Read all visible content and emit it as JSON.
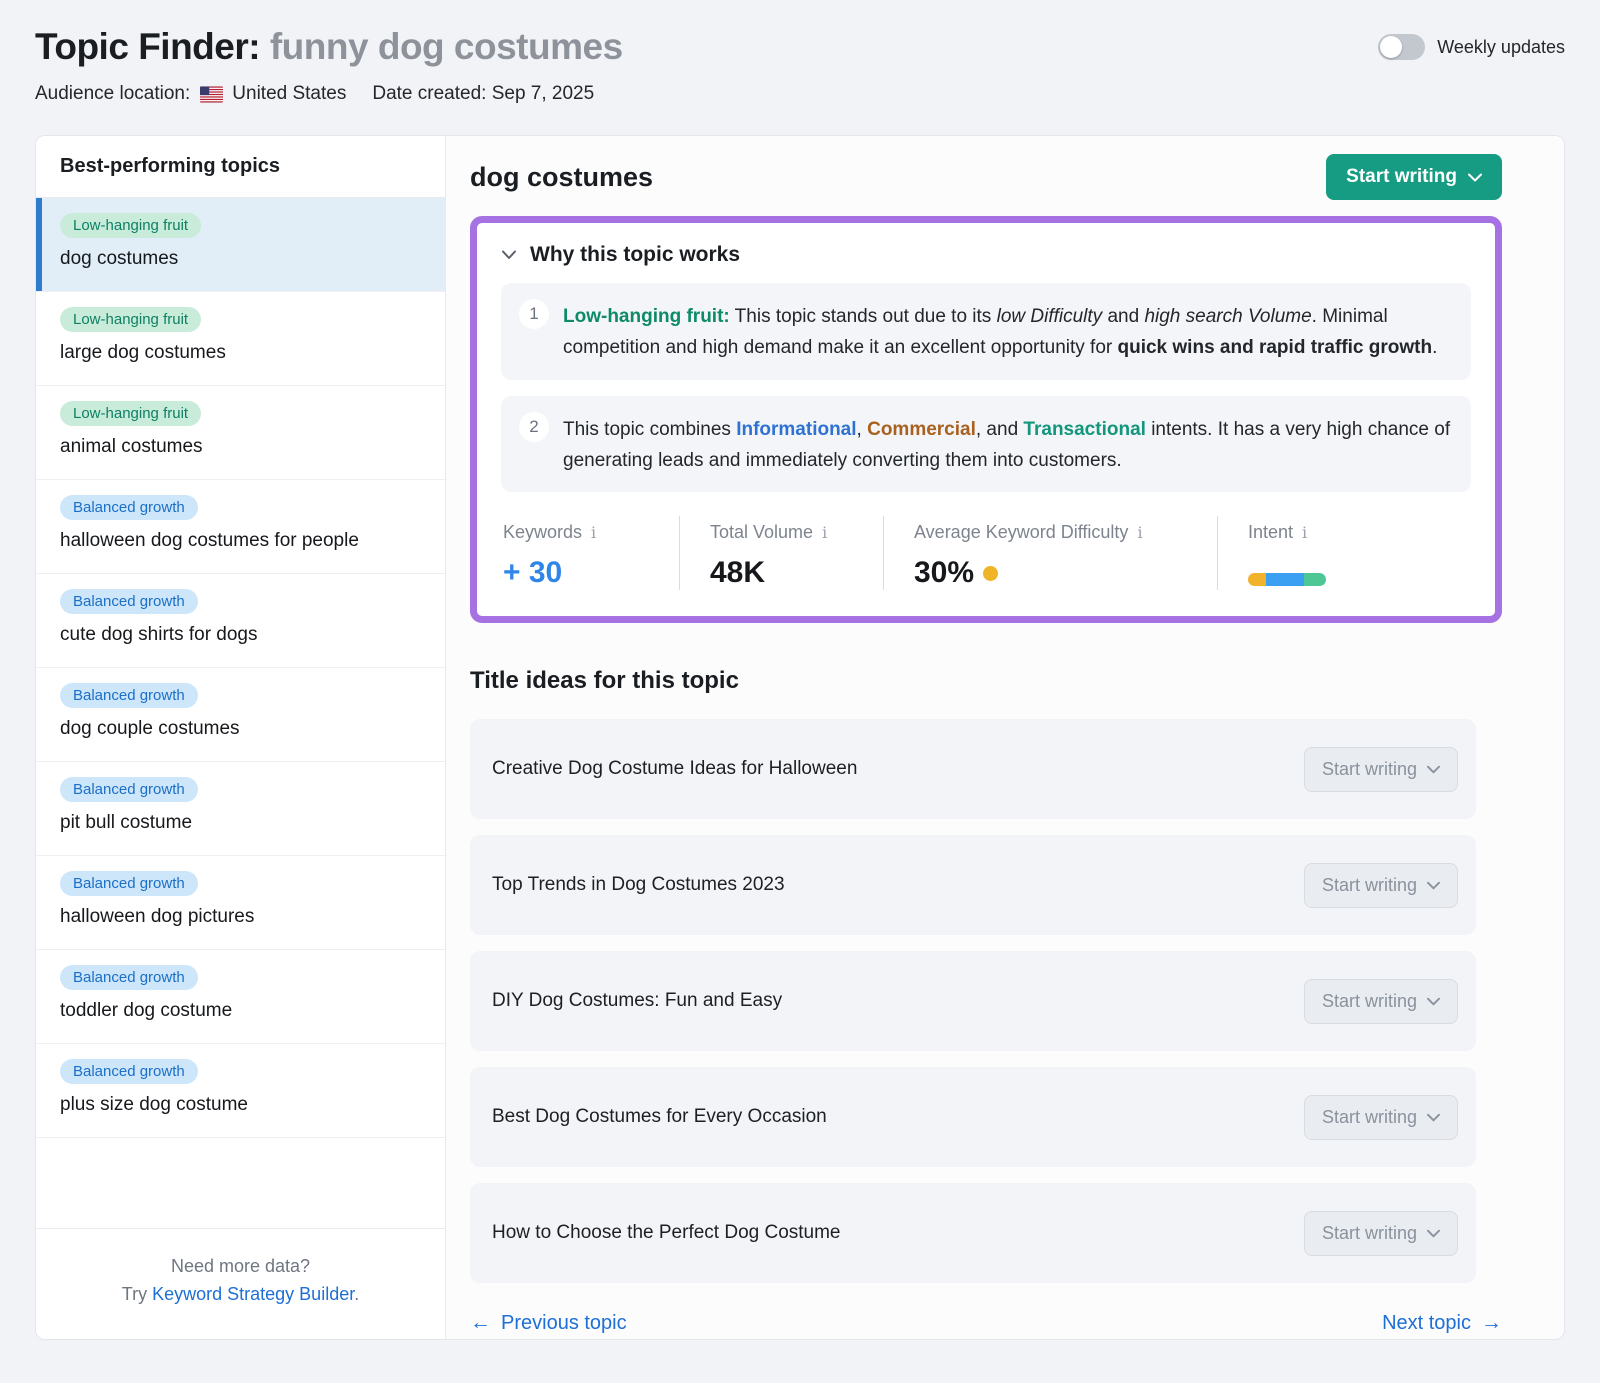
{
  "header": {
    "title_prefix": "Topic Finder:",
    "title_query": "funny dog costumes",
    "weekly_updates_label": "Weekly updates",
    "audience_location_label": "Audience location:",
    "audience_location_value": "United States",
    "date_created": "Date created: Sep 7, 2025"
  },
  "sidebar": {
    "title": "Best-performing topics",
    "items": [
      {
        "badge": "Low-hanging fruit",
        "badge_type": "green",
        "label": "dog costumes",
        "selected": true
      },
      {
        "badge": "Low-hanging fruit",
        "badge_type": "green",
        "label": "large dog costumes",
        "selected": false
      },
      {
        "badge": "Low-hanging fruit",
        "badge_type": "green",
        "label": "animal costumes",
        "selected": false
      },
      {
        "badge": "Balanced growth",
        "badge_type": "blue",
        "label": "halloween dog costumes for people",
        "selected": false
      },
      {
        "badge": "Balanced growth",
        "badge_type": "blue",
        "label": "cute dog shirts for dogs",
        "selected": false
      },
      {
        "badge": "Balanced growth",
        "badge_type": "blue",
        "label": "dog couple costumes",
        "selected": false
      },
      {
        "badge": "Balanced growth",
        "badge_type": "blue",
        "label": "pit bull costume",
        "selected": false
      },
      {
        "badge": "Balanced growth",
        "badge_type": "blue",
        "label": "halloween dog pictures",
        "selected": false
      },
      {
        "badge": "Balanced growth",
        "badge_type": "blue",
        "label": "toddler dog costume",
        "selected": false
      },
      {
        "badge": "Balanced growth",
        "badge_type": "blue",
        "label": "plus size dog costume",
        "selected": false
      }
    ],
    "footer": {
      "line1": "Need more data?",
      "try_label": "Try",
      "link_label": "Keyword Strategy Builder",
      "suffix": "."
    }
  },
  "main": {
    "topic_title": "dog costumes",
    "start_writing_label": "Start writing",
    "why_box": {
      "title": "Why this topic works",
      "points": [
        {
          "num": "1",
          "segments": [
            {
              "t": "Low-hanging fruit:",
              "s": "topic-tag"
            },
            {
              "t": " This topic stands out due to its ",
              "s": "plain"
            },
            {
              "t": "low Difficulty",
              "s": "italic"
            },
            {
              "t": " and ",
              "s": "plain"
            },
            {
              "t": "high search Volume",
              "s": "italic"
            },
            {
              "t": ". Minimal competition and high demand make it an excellent opportunity for ",
              "s": "plain"
            },
            {
              "t": "quick wins and rapid traffic growth",
              "s": "bold"
            },
            {
              "t": ".",
              "s": "plain"
            }
          ]
        },
        {
          "num": "2",
          "segments": [
            {
              "t": "This topic combines ",
              "s": "plain"
            },
            {
              "t": "Informational",
              "s": "informational"
            },
            {
              "t": ", ",
              "s": "plain"
            },
            {
              "t": "Commercial",
              "s": "commercial"
            },
            {
              "t": ", and ",
              "s": "plain"
            },
            {
              "t": "Transactional",
              "s": "transactional"
            },
            {
              "t": " intents. It has a very high chance of generating leads and immediately converting them into customers.",
              "s": "plain"
            }
          ]
        }
      ],
      "metrics": {
        "keywords": {
          "label": "Keywords",
          "value": "+ 30"
        },
        "total_volume": {
          "label": "Total Volume",
          "value": "48K"
        },
        "avg_difficulty": {
          "label": "Average Keyword Difficulty",
          "value": "30%",
          "dot_color": "#f0b429"
        },
        "intent": {
          "label": "Intent",
          "segments": [
            {
              "name": "commercial",
              "color": "#f2b32c",
              "width": 18
            },
            {
              "name": "informational",
              "color": "#3ba0f2",
              "width": 38
            },
            {
              "name": "transactional",
              "color": "#4fc795",
              "width": 22
            }
          ]
        }
      }
    },
    "title_ideas": {
      "heading": "Title ideas for this topic",
      "button_label": "Start writing",
      "items": [
        "Creative Dog Costume Ideas for Halloween",
        "Top Trends in Dog Costumes 2023",
        "DIY Dog Costumes: Fun and Easy",
        "Best Dog Costumes for Every Occasion",
        "How to Choose the Perfect Dog Costume"
      ]
    },
    "footer": {
      "prev": "Previous topic",
      "next": "Next topic"
    }
  }
}
